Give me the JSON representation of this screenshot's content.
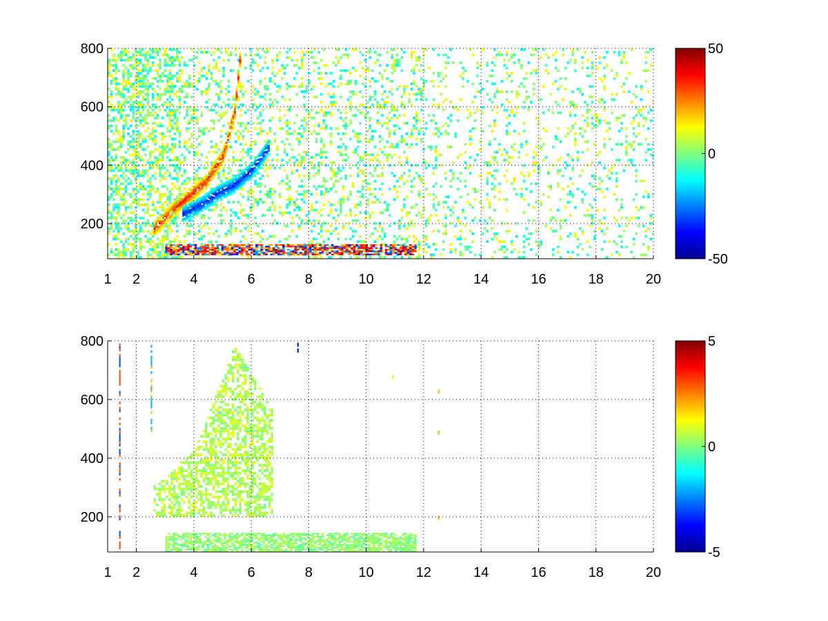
{
  "colormap": "jet",
  "colormap_stops": [
    "#00008f",
    "#0000ff",
    "#00ffff",
    "#ffff00",
    "#ff0000",
    "#800000"
  ],
  "chart_data": [
    {
      "type": "heatmap",
      "title": "",
      "xlabel": "",
      "ylabel": "",
      "xlim": [
        1,
        20
      ],
      "ylim": [
        80,
        800
      ],
      "x_ticks": [
        1,
        2,
        4,
        6,
        8,
        10,
        12,
        14,
        16,
        18,
        20
      ],
      "x_tick_labels": [
        "1",
        "2",
        "4",
        "6",
        "8",
        "10",
        "12",
        "14",
        "16",
        "18",
        "20"
      ],
      "y_ticks": [
        200,
        400,
        600,
        800
      ],
      "y_tick_labels": [
        "200",
        "400",
        "600",
        "800"
      ],
      "grid": true,
      "colorbar": {
        "clim": [
          -50,
          50
        ],
        "ticks": [
          -50,
          0,
          50
        ],
        "tick_labels": [
          "-50",
          "0",
          "50"
        ]
      },
      "features": [
        {
          "kind": "noise",
          "x_range": [
            1,
            20
          ],
          "y_range": [
            80,
            800
          ],
          "value_range": [
            -15,
            15
          ],
          "density": 0.22
        },
        {
          "kind": "band",
          "x_range": [
            3,
            11.7
          ],
          "y": 110,
          "value": 45,
          "width": 18
        },
        {
          "kind": "curve",
          "x": [
            2.6,
            3.2,
            3.8,
            4.4,
            5.0,
            5.4,
            5.6
          ],
          "y": [
            180,
            240,
            290,
            340,
            430,
            580,
            780
          ],
          "value": 40
        },
        {
          "kind": "curve",
          "x": [
            3.6,
            4.2,
            4.8,
            5.4,
            6.0,
            6.6
          ],
          "y": [
            230,
            260,
            300,
            330,
            380,
            460
          ],
          "value": -40
        }
      ]
    },
    {
      "type": "heatmap",
      "title": "",
      "xlabel": "",
      "ylabel": "",
      "xlim": [
        1,
        20
      ],
      "ylim": [
        80,
        800
      ],
      "x_ticks": [
        1,
        2,
        4,
        6,
        8,
        10,
        12,
        14,
        16,
        18,
        20
      ],
      "x_tick_labels": [
        "1",
        "2",
        "4",
        "6",
        "8",
        "10",
        "12",
        "14",
        "16",
        "18",
        "20"
      ],
      "y_ticks": [
        200,
        400,
        600,
        800
      ],
      "y_tick_labels": [
        "200",
        "400",
        "600",
        "800"
      ],
      "grid": true,
      "colorbar": {
        "clim": [
          -5,
          5
        ],
        "ticks": [
          -5,
          0,
          5
        ],
        "tick_labels": [
          "-5",
          "0",
          "5"
        ]
      },
      "features": [
        {
          "kind": "region",
          "x_range": [
            2.6,
            6.7
          ],
          "y_lower": 200,
          "y_upper_at_x": [
            [
              2.6,
              300
            ],
            [
              4,
              420
            ],
            [
              5.4,
              780
            ],
            [
              6.7,
              560
            ]
          ],
          "value": 0.5,
          "density": 0.55
        },
        {
          "kind": "band",
          "x_range": [
            3,
            11.7
          ],
          "y": 110,
          "value": 0.5,
          "width": 35
        },
        {
          "kind": "line",
          "x": 1.4,
          "y_range": [
            80,
            800
          ],
          "value": 3
        },
        {
          "kind": "line",
          "x": 2.5,
          "y_range": [
            480,
            780
          ],
          "value": 2
        },
        {
          "kind": "dots",
          "points": [
            [
              7.6,
              780,
              -4
            ],
            [
              7.6,
              760,
              -4
            ],
            [
              12.5,
              190,
              2
            ],
            [
              12.5,
              480,
              2
            ],
            [
              12.5,
              620,
              2
            ],
            [
              10.9,
              670,
              1
            ]
          ]
        }
      ]
    }
  ]
}
